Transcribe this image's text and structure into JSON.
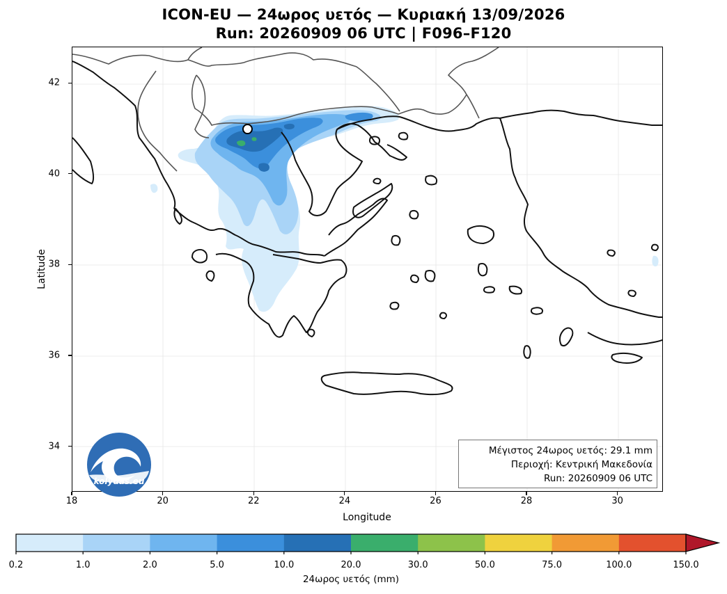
{
  "title_line1": "ICON-EU — 24ωρος υετός — Κυριακή 13/09/2026",
  "title_line2": "Run: 20260909 06 UTC | F096–F120",
  "map": {
    "xlabel": "Longitude",
    "ylabel": "Latitude",
    "lon_range": [
      18,
      31
    ],
    "lat_range": [
      33,
      42.8
    ],
    "xticks": [
      "18",
      "20",
      "22",
      "24",
      "26",
      "28",
      "30"
    ],
    "yticks": [
      "34",
      "36",
      "38",
      "40",
      "42"
    ],
    "grid": true,
    "marker": {
      "name": "max precipitation location",
      "lon": 21.85,
      "lat": 41.0
    }
  },
  "info_box": {
    "line1": "Μέγιστος 24ωρος υετός: 29.1 mm",
    "line2": "Περιοχή: Κεντρική Μακεδονία",
    "line3": "Run: 20260909 06 UTC"
  },
  "logo": {
    "text": "kolydas.eu",
    "icon": "wave-logo-icon",
    "color": "#2f6db5"
  },
  "colorbar": {
    "title": "24ωρος υετός (mm)",
    "labels": [
      "0.2",
      "1.0",
      "2.0",
      "5.0",
      "10.0",
      "20.0",
      "30.0",
      "50.0",
      "75.0",
      "100.0",
      "150.0"
    ],
    "colors": [
      "#d6ecfb",
      "#a9d4f7",
      "#6fb5ef",
      "#3b8fdc",
      "#2670b5",
      "#3aae6c",
      "#8dc24a",
      "#efd23e",
      "#f19a35",
      "#e3512e"
    ],
    "extend_color": "#b0172a"
  }
}
